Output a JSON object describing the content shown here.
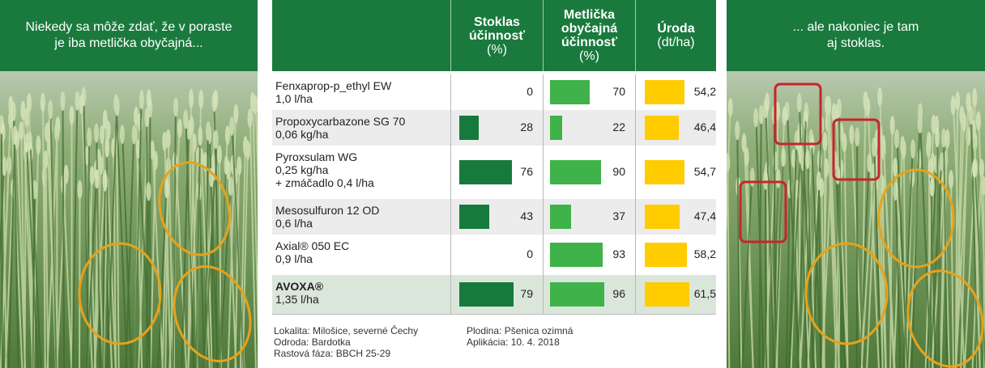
{
  "left_panel": {
    "caption": "Niekedy sa môže zdať, že v poraste\nje iba metlička obyčajná..."
  },
  "right_panel": {
    "caption": "... ale nakoniec je tam\naj stoklas."
  },
  "table": {
    "headers": [
      {
        "name": "Stoklas\núčinnosť",
        "unit": "(%)"
      },
      {
        "name": "Metlička\nobyčajná\núčinnosť",
        "unit": "(%)"
      },
      {
        "name": "Úroda",
        "unit": "(dt/ha)"
      }
    ],
    "rows": [
      {
        "product": "Fenxaprop-p_ethyl EW",
        "dose": "1,0 l/ha",
        "stoklas": "0",
        "stoklas_value": 0,
        "metlicka": "70",
        "metlicka_value": 70,
        "uroda": "54,2",
        "uroda_value": 54.2
      },
      {
        "product": "Propoxycarbazone SG 70",
        "dose": "0,06 kg/ha",
        "stoklas": "28",
        "stoklas_value": 28,
        "metlicka": "22",
        "metlicka_value": 22,
        "uroda": "46,4",
        "uroda_value": 46.4
      },
      {
        "product": "Pyroxsulam WG",
        "dose": "0,25 kg/ha\n+ zmáčadlo 0,4 l/ha",
        "stoklas": "76",
        "stoklas_value": 76,
        "metlicka": "90",
        "metlicka_value": 90,
        "uroda": "54,7",
        "uroda_value": 54.7
      },
      {
        "product": "Mesosulfuron 12 OD",
        "dose": "0,6 l/ha",
        "stoklas": "43",
        "stoklas_value": 43,
        "metlicka": "37",
        "metlicka_value": 37,
        "uroda": "47,4",
        "uroda_value": 47.4
      },
      {
        "product": "Axial® 050 EC",
        "dose": "0,9 l/ha",
        "stoklas": "0",
        "stoklas_value": 0,
        "metlicka": "93",
        "metlicka_value": 93,
        "uroda": "58,2",
        "uroda_value": 58.2
      },
      {
        "product": "AVOXA®",
        "dose": "1,35 l/ha",
        "stoklas": "79",
        "stoklas_value": 79,
        "metlicka": "96",
        "metlicka_value": 96,
        "uroda": "61,5",
        "uroda_value": 61.5
      }
    ]
  },
  "footer": {
    "left": "Lokalita: Milošice, severné Čechy\nOdroda: Bardotka\nRastová fáza: BBCH 25-29",
    "right": "Plodina: Pšenica ozimná\nAplikácia: 10. 4. 2018"
  },
  "colors": {
    "header_green": "#1a7a3e",
    "stoklas_bar": "#167a3d",
    "metlicka_bar": "#3fb249",
    "uroda_bar": "#ffcc00",
    "circle_orange": "#e8a21a",
    "box_red": "#c8242b"
  }
}
